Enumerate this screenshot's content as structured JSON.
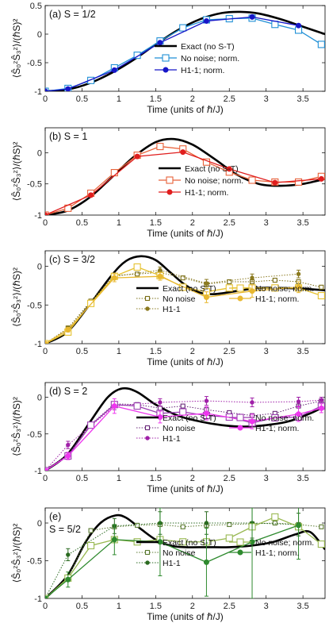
{
  "chart_data": [
    {
      "type": "line",
      "title": "(a)  S = 1/2",
      "xlabel": "Time (units of ℏ/J)",
      "ylabel": "⟨Ŝ₀ᶻŜ₃ᶻ⟩/(ℏS)²",
      "xlim": [
        0,
        3.8
      ],
      "ylim": [
        -1,
        0.5
      ],
      "yticks": [
        -1,
        -0.5,
        0,
        0.5
      ],
      "ytick_labels": [
        "-1",
        "-0.5",
        "0",
        "0.5"
      ],
      "xticks": [
        0,
        0.5,
        1,
        1.5,
        2,
        2.5,
        3,
        3.5
      ],
      "xtick_labels": [
        "0",
        "0.5",
        "1",
        "1.5",
        "2",
        "2.5",
        "3",
        "3.5"
      ],
      "legend_position": "right",
      "series": [
        {
          "name": "Exact (no S-T)",
          "style": "exact",
          "color": "#000000",
          "x": [
            0,
            0.3,
            0.6,
            0.9,
            1.2,
            1.5,
            1.8,
            2.1,
            2.4,
            2.65,
            2.9,
            3.2,
            3.5,
            3.8
          ],
          "values": [
            -1,
            -0.97,
            -0.86,
            -0.68,
            -0.45,
            -0.18,
            0.07,
            0.26,
            0.37,
            0.39,
            0.36,
            0.26,
            0.13,
            0.0
          ]
        },
        {
          "name": "No noise; norm.",
          "style": "sq-solid",
          "color": "#1f8fd6",
          "x": [
            0,
            0.31,
            0.62,
            0.94,
            1.25,
            1.56,
            1.87,
            2.19,
            2.5,
            2.81,
            3.12,
            3.44,
            3.75
          ],
          "values": [
            -1,
            -0.95,
            -0.81,
            -0.59,
            -0.37,
            -0.12,
            0.11,
            0.25,
            0.27,
            0.28,
            0.17,
            0.07,
            -0.18
          ]
        },
        {
          "name": "H1-1; norm.",
          "style": "dot-solid",
          "color": "#1616c8",
          "x": [
            0,
            0.31,
            0.94,
            1.56,
            2.19,
            2.81,
            3.44
          ],
          "values": [
            -1,
            -0.96,
            -0.63,
            -0.15,
            0.23,
            0.3,
            0.15
          ]
        }
      ]
    },
    {
      "type": "line",
      "title": "(b)  S = 1",
      "xlabel": "Time (units of ℏ/J)",
      "ylabel": "⟨Ŝ₀ᶻŜ₃ᶻ⟩/(ℏS)²",
      "xlim": [
        0,
        3.8
      ],
      "ylim": [
        -1,
        0.4
      ],
      "yticks": [
        -1,
        -0.5,
        0
      ],
      "ytick_labels": [
        "-1",
        "-0.5",
        "0"
      ],
      "xticks": [
        0,
        0.5,
        1,
        1.5,
        2,
        2.5,
        3,
        3.5
      ],
      "xtick_labels": [
        "0",
        "0.5",
        "1",
        "1.5",
        "2",
        "2.5",
        "3",
        "3.5"
      ],
      "legend_position": "right",
      "series": [
        {
          "name": "Exact (no S-T)",
          "style": "exact",
          "color": "#000000",
          "x": [
            0,
            0.3,
            0.6,
            0.9,
            1.2,
            1.5,
            1.75,
            2.0,
            2.3,
            2.6,
            2.9,
            3.2,
            3.5,
            3.8
          ],
          "values": [
            -1,
            -0.93,
            -0.72,
            -0.4,
            -0.07,
            0.17,
            0.22,
            0.13,
            -0.1,
            -0.35,
            -0.5,
            -0.53,
            -0.5,
            -0.42
          ]
        },
        {
          "name": "No noise; norm.",
          "style": "sq-solid",
          "color": "#e8623a",
          "x": [
            0,
            0.31,
            0.62,
            0.94,
            1.25,
            1.56,
            1.87,
            2.19,
            2.5,
            2.81,
            3.12,
            3.44,
            3.75
          ],
          "values": [
            -1,
            -0.89,
            -0.65,
            -0.32,
            -0.04,
            0.1,
            0.06,
            -0.15,
            -0.31,
            -0.44,
            -0.47,
            -0.47,
            -0.38
          ]
        },
        {
          "name": "H1-1; norm.",
          "style": "dot-solid",
          "color": "#e01e1e",
          "x": [
            0,
            0.62,
            1.25,
            1.87,
            2.5,
            3.12,
            3.75
          ],
          "values": [
            -1,
            -0.68,
            -0.06,
            0.01,
            -0.26,
            -0.48,
            -0.42
          ]
        }
      ]
    },
    {
      "type": "line",
      "title": "(c)  S = 3/2",
      "xlabel": "Time (units of ℏ/J)",
      "ylabel": "⟨Ŝ₀ᶻŜ₃ᶻ⟩/(ℏS)²",
      "xlim": [
        0,
        3.8
      ],
      "ylim": [
        -1,
        0.2
      ],
      "yticks": [
        -1,
        -0.5,
        0
      ],
      "ytick_labels": [
        "-1",
        "-0.5",
        "0"
      ],
      "xticks": [
        0,
        0.5,
        1,
        1.5,
        2,
        2.5,
        3,
        3.5
      ],
      "xtick_labels": [
        "0",
        "0.5",
        "1",
        "1.5",
        "2",
        "2.5",
        "3",
        "3.5"
      ],
      "legend_position": "bottom-right",
      "series": [
        {
          "name": "Exact (no S-T)",
          "style": "exact",
          "color": "#000000",
          "x": [
            0,
            0.3,
            0.6,
            0.9,
            1.1,
            1.3,
            1.5,
            1.7,
            1.9,
            2.1,
            2.3,
            2.6,
            2.9,
            3.2,
            3.5,
            3.8
          ],
          "values": [
            -1,
            -0.85,
            -0.5,
            -0.12,
            0.07,
            0.13,
            0.08,
            -0.08,
            -0.24,
            -0.34,
            -0.36,
            -0.32,
            -0.28,
            -0.28,
            -0.29,
            -0.31
          ]
        },
        {
          "name": "No noise",
          "style": "sq-dotted",
          "color": "#7b6f18",
          "x": [
            0,
            0.31,
            0.62,
            0.94,
            1.25,
            1.56,
            1.87,
            2.19,
            2.5,
            2.81,
            3.12,
            3.44,
            3.75
          ],
          "values": [
            -1,
            -0.8,
            -0.45,
            -0.12,
            -0.1,
            -0.08,
            -0.15,
            -0.23,
            -0.2,
            -0.2,
            -0.18,
            -0.2,
            -0.27
          ]
        },
        {
          "name": "H1-1",
          "style": "dot-dotted",
          "color": "#8b7a20",
          "x": [
            0,
            0.31,
            0.94,
            1.56,
            2.19,
            2.81,
            3.44
          ],
          "values": [
            -1,
            -0.8,
            -0.13,
            -0.05,
            -0.22,
            -0.15,
            -0.1
          ],
          "err": [
            0,
            0.03,
            0.04,
            0.04,
            0.05,
            0.05,
            0.05
          ]
        },
        {
          "name": "No noise; norm.",
          "style": "sq-solid",
          "color": "#e6c12e",
          "x": [
            0,
            0.31,
            0.62,
            0.94,
            1.25,
            1.56,
            1.87,
            2.19,
            2.5,
            2.81,
            3.12,
            3.44,
            3.75
          ],
          "values": [
            -1,
            -0.85,
            -0.48,
            -0.13,
            -0.01,
            -0.12,
            -0.27,
            -0.33,
            -0.28,
            -0.28,
            -0.28,
            -0.28,
            -0.38
          ]
        },
        {
          "name": "H1-1; norm.",
          "style": "dot-solid",
          "color": "#e8b830",
          "x": [
            0,
            0.31,
            0.94,
            1.56,
            2.19,
            2.81,
            3.44
          ],
          "values": [
            -1,
            -0.82,
            -0.15,
            -0.13,
            -0.4,
            -0.32,
            -0.27
          ],
          "err": [
            0,
            0.03,
            0.05,
            0.05,
            0.07,
            0.08,
            0.07
          ]
        }
      ]
    },
    {
      "type": "line",
      "title": "(d)  S = 2",
      "xlabel": "Time (units of ℏ/J)",
      "ylabel": "⟨Ŝ₀ᶻŜ₃ᶻ⟩/(ℏS)²",
      "xlim": [
        0,
        3.8
      ],
      "ylim": [
        -1,
        0.2
      ],
      "yticks": [
        -1,
        -0.5,
        0
      ],
      "ytick_labels": [
        "-1",
        "-0.5",
        "0"
      ],
      "xticks": [
        0,
        0.5,
        1,
        1.5,
        2,
        2.5,
        3,
        3.5
      ],
      "xtick_labels": [
        "0",
        "0.5",
        "1",
        "1.5",
        "2",
        "2.5",
        "3",
        "3.5"
      ],
      "legend_position": "bottom-right",
      "series": [
        {
          "name": "Exact (no S-T)",
          "style": "exact",
          "color": "#000000",
          "x": [
            0,
            0.3,
            0.6,
            0.85,
            1.05,
            1.25,
            1.5,
            1.8,
            2.1,
            2.4,
            2.7,
            3.0,
            3.3,
            3.6,
            3.8
          ],
          "values": [
            -1,
            -0.78,
            -0.35,
            0.0,
            0.12,
            0.07,
            -0.1,
            -0.25,
            -0.33,
            -0.38,
            -0.4,
            -0.38,
            -0.33,
            -0.22,
            -0.12
          ]
        },
        {
          "name": "No noise",
          "style": "sq-dotted",
          "color": "#6a2a7a",
          "x": [
            0,
            0.31,
            0.62,
            0.94,
            1.25,
            1.56,
            1.87,
            2.19,
            2.5,
            2.81,
            3.12,
            3.44,
            3.75
          ],
          "values": [
            -1,
            -0.78,
            -0.37,
            -0.09,
            -0.1,
            -0.15,
            -0.12,
            -0.17,
            -0.21,
            -0.25,
            -0.22,
            -0.12,
            -0.05
          ]
        },
        {
          "name": "H1-1",
          "style": "dot-dotted",
          "color": "#a020a8",
          "x": [
            0,
            0.31,
            0.94,
            1.56,
            2.19,
            2.81,
            3.44,
            3.75
          ],
          "values": [
            -1,
            -0.65,
            -0.12,
            -0.07,
            -0.05,
            -0.07,
            -0.06,
            -0.04
          ],
          "err": [
            0,
            0.05,
            0.05,
            0.05,
            0.06,
            0.06,
            0.06,
            0.04
          ]
        },
        {
          "name": "No noise; norm.",
          "style": "sq-solid",
          "color": "#9a3ab0",
          "x": [
            0,
            0.31,
            0.62,
            0.94,
            1.25,
            1.56,
            1.87,
            2.19,
            2.5,
            2.81,
            3.12,
            3.44,
            3.75
          ],
          "values": [
            -1,
            -0.8,
            -0.38,
            -0.1,
            -0.12,
            -0.22,
            -0.2,
            -0.25,
            -0.27,
            -0.35,
            -0.28,
            -0.27,
            -0.12
          ]
        },
        {
          "name": "H1-1; norm.",
          "style": "dot-solid",
          "color": "#ee36ee",
          "x": [
            0,
            0.31,
            0.94,
            1.56,
            2.19,
            2.81,
            3.44,
            3.75
          ],
          "values": [
            -1,
            -0.8,
            -0.12,
            -0.27,
            -0.22,
            -0.33,
            -0.23,
            -0.15
          ],
          "err": [
            0,
            0.05,
            0.1,
            0.08,
            0.09,
            0.1,
            0.1,
            0.06
          ]
        }
      ]
    },
    {
      "type": "line",
      "title": "(e)",
      "subtitle": "S = 5/2",
      "xlabel": "Time (units of ℏ/J)",
      "ylabel": "⟨Ŝ₀ᶻŜ₃ᶻ⟩/(ℏS)²",
      "xlim": [
        0,
        3.8
      ],
      "ylim": [
        -1,
        0.2
      ],
      "yticks": [
        -1,
        -0.5,
        0
      ],
      "ytick_labels": [
        "-1",
        "-0.5",
        "0"
      ],
      "xticks": [
        0,
        0.5,
        1,
        1.5,
        2,
        2.5,
        3,
        3.5
      ],
      "xtick_labels": [
        "0",
        "0.5",
        "1",
        "1.5",
        "2",
        "2.5",
        "3",
        "3.5"
      ],
      "legend_position": "bottom-right",
      "series": [
        {
          "name": "Exact (no S-T)",
          "style": "exact",
          "color": "#000000",
          "x": [
            0,
            0.3,
            0.55,
            0.75,
            0.95,
            1.1,
            1.3,
            1.5,
            1.7,
            1.9,
            2.2,
            2.5,
            2.8,
            3.1,
            3.4,
            3.6,
            3.8
          ],
          "values": [
            -1,
            -0.7,
            -0.25,
            0.0,
            0.1,
            0.07,
            -0.08,
            -0.22,
            -0.3,
            -0.32,
            -0.32,
            -0.32,
            -0.3,
            -0.25,
            -0.15,
            -0.12,
            -0.35
          ]
        },
        {
          "name": "No noise",
          "style": "sq-dotted",
          "color": "#5a7a30",
          "x": [
            0,
            0.31,
            0.62,
            0.94,
            1.25,
            1.56,
            1.87,
            2.19,
            2.5,
            2.81,
            3.12,
            3.44,
            3.75
          ],
          "values": [
            -1,
            -0.72,
            -0.1,
            -0.05,
            -0.03,
            -0.02,
            -0.05,
            -0.03,
            -0.02,
            -0.01,
            0.0,
            -0.02,
            -0.05
          ]
        },
        {
          "name": "H1-1",
          "style": "dot-dotted",
          "color": "#2a6a20",
          "x": [
            0,
            0.31,
            0.94,
            1.56,
            2.19,
            2.81,
            3.44
          ],
          "values": [
            -1,
            -0.42,
            -0.04,
            0.0,
            0.0,
            0.0,
            -0.02
          ],
          "err": [
            0,
            0.08,
            0.1,
            0.15,
            0.15,
            0.2,
            0.15
          ]
        },
        {
          "name": "No noise; norm.",
          "style": "sq-solid",
          "color": "#98b850",
          "x": [
            0,
            0.31,
            0.62,
            0.94,
            1.25,
            1.56,
            1.87,
            2.19,
            2.5,
            2.81,
            3.12,
            3.44,
            3.75
          ],
          "values": [
            -1,
            -0.73,
            -0.3,
            -0.22,
            -0.25,
            -0.22,
            -0.25,
            -0.25,
            -0.2,
            -0.05,
            0.08,
            -0.05,
            -0.28
          ]
        },
        {
          "name": "H1-1; norm.",
          "style": "dot-solid",
          "color": "#2e8a2e",
          "x": [
            0,
            0.31,
            0.94,
            1.56,
            2.19,
            2.81,
            3.44
          ],
          "values": [
            -1,
            -0.75,
            -0.22,
            -0.25,
            -0.52,
            -0.25,
            -0.03
          ],
          "err": [
            0,
            0.1,
            0.2,
            0.45,
            0.45,
            0.75,
            0.45
          ]
        }
      ]
    }
  ]
}
